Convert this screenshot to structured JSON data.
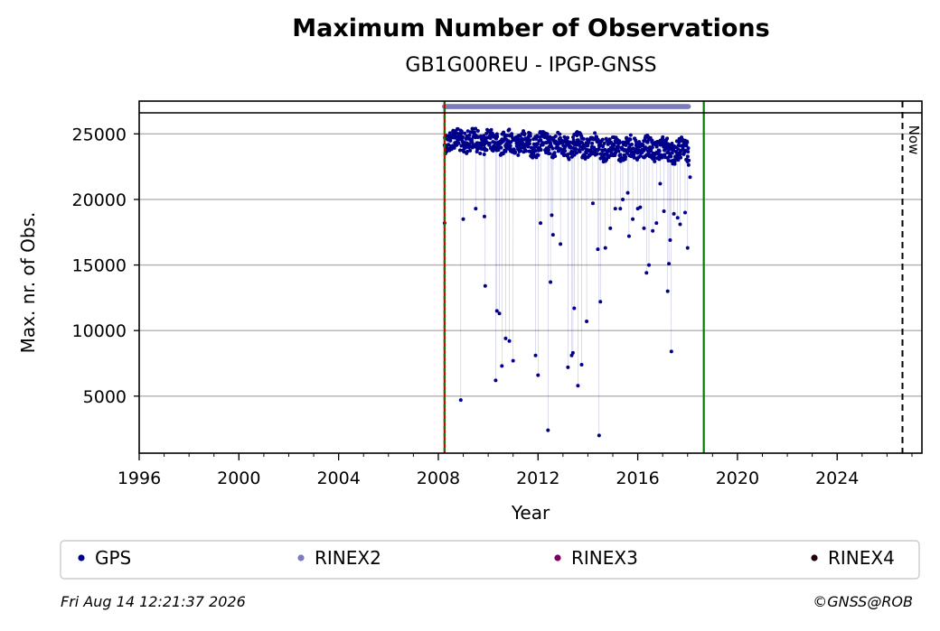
{
  "chart_data": {
    "type": "scatter",
    "title": "Maximum Number of Observations",
    "subtitle": "GB1G00REU - IPGP-GNSS",
    "xlabel": "Year",
    "ylabel": "Max. nr. of Obs.",
    "xlim": [
      1996,
      2027.4
    ],
    "ylim": [
      650,
      27500
    ],
    "x_ticks": [
      "1996",
      "2000",
      "2004",
      "2008",
      "2012",
      "2016",
      "2020",
      "2024"
    ],
    "y_ticks": [
      "5000",
      "10000",
      "15000",
      "20000",
      "25000"
    ],
    "grid": "horizontal",
    "vertical_lines": [
      {
        "x": 2008.25,
        "style": "red-green dashed"
      },
      {
        "x": 2018.65,
        "style": "green solid"
      },
      {
        "x": 2026.62,
        "label": "Now",
        "style": "black dashed"
      }
    ],
    "series": [
      {
        "name": "GPS",
        "color": "#00008b",
        "main_band": {
          "x_range": [
            2008.25,
            2018.05
          ],
          "y_range": [
            22500,
            25400
          ]
        },
        "points": [
          [
            2008.25,
            18200
          ],
          [
            2008.9,
            4700
          ],
          [
            2009.0,
            18500
          ],
          [
            2009.5,
            19300
          ],
          [
            2009.85,
            18700
          ],
          [
            2009.88,
            13400
          ],
          [
            2010.3,
            6200
          ],
          [
            2010.35,
            11500
          ],
          [
            2010.45,
            11300
          ],
          [
            2010.55,
            7300
          ],
          [
            2010.7,
            9400
          ],
          [
            2010.85,
            9200
          ],
          [
            2011.0,
            7700
          ],
          [
            2011.9,
            8100
          ],
          [
            2012.0,
            6600
          ],
          [
            2012.1,
            18200
          ],
          [
            2012.4,
            2400
          ],
          [
            2012.5,
            13700
          ],
          [
            2012.55,
            18800
          ],
          [
            2012.6,
            17300
          ],
          [
            2012.9,
            16600
          ],
          [
            2013.2,
            7200
          ],
          [
            2013.35,
            8100
          ],
          [
            2013.4,
            8300
          ],
          [
            2013.45,
            11700
          ],
          [
            2013.6,
            5800
          ],
          [
            2013.75,
            7400
          ],
          [
            2013.95,
            10700
          ],
          [
            2014.2,
            19700
          ],
          [
            2014.4,
            16200
          ],
          [
            2014.45,
            2000
          ],
          [
            2014.5,
            12200
          ],
          [
            2014.7,
            16300
          ],
          [
            2014.9,
            17800
          ],
          [
            2015.1,
            19300
          ],
          [
            2015.3,
            19300
          ],
          [
            2015.4,
            20000
          ],
          [
            2015.6,
            20500
          ],
          [
            2015.65,
            17200
          ],
          [
            2015.8,
            18500
          ],
          [
            2016.0,
            19300
          ],
          [
            2016.1,
            19400
          ],
          [
            2016.25,
            17800
          ],
          [
            2016.35,
            14400
          ],
          [
            2016.45,
            15000
          ],
          [
            2016.6,
            17600
          ],
          [
            2016.75,
            18200
          ],
          [
            2016.9,
            21200
          ],
          [
            2017.05,
            19100
          ],
          [
            2017.2,
            13000
          ],
          [
            2017.25,
            15100
          ],
          [
            2017.3,
            16900
          ],
          [
            2017.35,
            8400
          ],
          [
            2017.45,
            18900
          ],
          [
            2017.6,
            18600
          ],
          [
            2017.7,
            18100
          ],
          [
            2017.9,
            19000
          ],
          [
            2018.0,
            16300
          ],
          [
            2018.1,
            21700
          ]
        ]
      },
      {
        "name": "RINEX2",
        "color": "#7b7bbf",
        "x_range": [
          2008.25,
          2018.05
        ],
        "y": 27100
      },
      {
        "name": "RINEX3",
        "color": "#800060"
      },
      {
        "name": "RINEX4",
        "color": "#200010"
      }
    ],
    "legend": "bottom",
    "now_label": "Now"
  },
  "footer": {
    "timestamp": "Fri Aug 14 12:21:37 2026",
    "copyright": "©GNSS@ROB"
  }
}
